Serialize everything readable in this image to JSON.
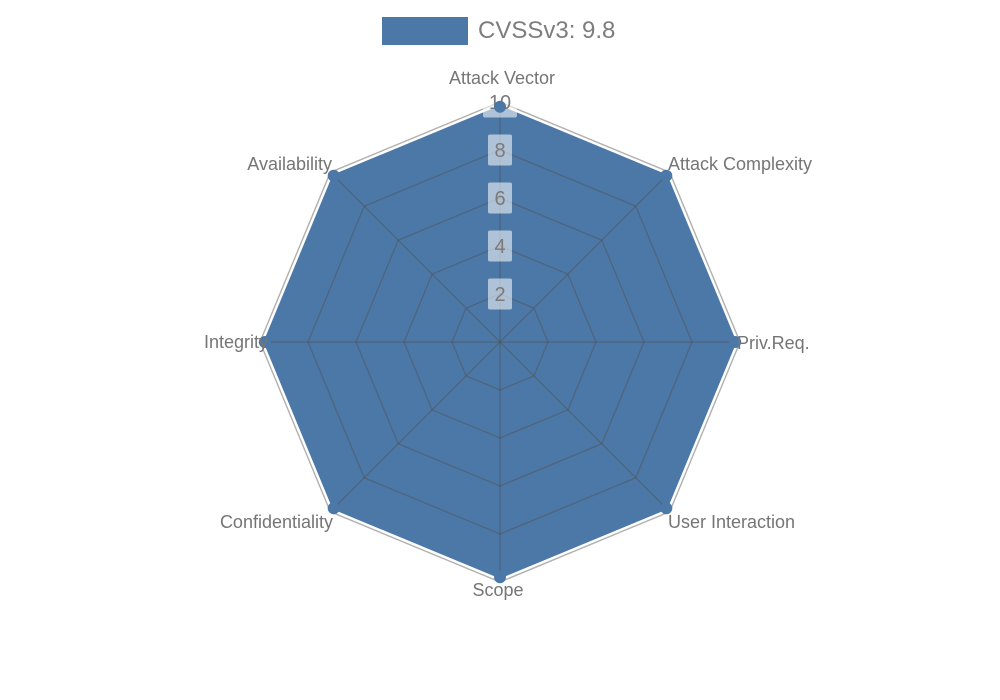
{
  "legend": {
    "label": "CVSSv3: 9.8",
    "swatch_color": "#4C78A8"
  },
  "chart_data": {
    "type": "radar",
    "title": "CVSSv3: 9.8",
    "categories": [
      "Attack Vector",
      "Attack Complexity",
      "Priv.Req.",
      "User Interaction",
      "Scope",
      "Confidentiality",
      "Integrity",
      "Availability"
    ],
    "series": [
      {
        "name": "CVSSv3: 9.8",
        "values": [
          9.8,
          9.8,
          9.8,
          9.8,
          9.8,
          9.8,
          9.8,
          9.8
        ]
      }
    ],
    "rlim": [
      0,
      10
    ],
    "rticks": [
      2,
      4,
      6,
      8,
      10
    ],
    "grid": true,
    "legend_position": "top-center",
    "colors": {
      "series_fill": "#4C78A8",
      "grid_line": "rgba(80,80,80,0.45)",
      "tick_text": "#7a7a7a",
      "tick_box": "rgba(255,255,255,0.55)",
      "axis_label_text": "#757575",
      "legend_text": "#7d7d7d"
    }
  }
}
